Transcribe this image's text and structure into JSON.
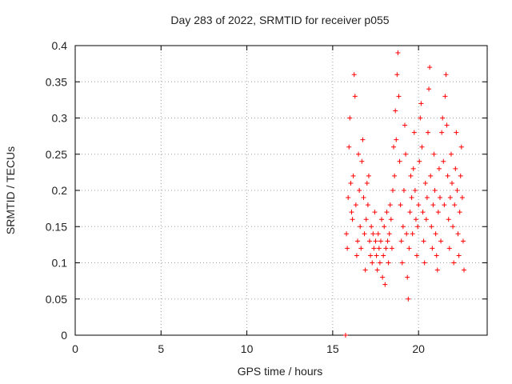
{
  "chart_data": {
    "type": "scatter",
    "title": "Day 283 of 2022, SRMTID for receiver p055",
    "xlabel": "GPS time / hours",
    "ylabel": "SRMTID / TECUs",
    "xlim": [
      0,
      24
    ],
    "ylim": [
      0,
      0.4
    ],
    "xticks": [
      0,
      5,
      10,
      15,
      20
    ],
    "xtick_labels": [
      "0",
      "5",
      "10",
      "15",
      "20"
    ],
    "yticks": [
      0,
      0.05,
      0.1,
      0.15,
      0.2,
      0.25,
      0.3,
      0.35,
      0.4
    ],
    "ytick_labels": [
      "0",
      "0.05",
      "0.1",
      "0.15",
      "0.2",
      "0.25",
      "0.3",
      "0.35",
      "0.4"
    ],
    "grid": true,
    "marker": "+",
    "color": "#ff0000",
    "series": [
      {
        "name": "SRMTID",
        "points": [
          [
            15.75,
            0.0
          ],
          [
            15.8,
            0.14
          ],
          [
            15.85,
            0.12
          ],
          [
            15.9,
            0.19
          ],
          [
            15.95,
            0.26
          ],
          [
            16.0,
            0.3
          ],
          [
            16.05,
            0.21
          ],
          [
            16.1,
            0.17
          ],
          [
            16.15,
            0.16
          ],
          [
            16.2,
            0.22
          ],
          [
            16.25,
            0.36
          ],
          [
            16.3,
            0.33
          ],
          [
            16.35,
            0.18
          ],
          [
            16.4,
            0.11
          ],
          [
            16.45,
            0.13
          ],
          [
            16.5,
            0.25
          ],
          [
            16.55,
            0.2
          ],
          [
            16.6,
            0.15
          ],
          [
            16.65,
            0.12
          ],
          [
            16.7,
            0.24
          ],
          [
            16.75,
            0.27
          ],
          [
            16.8,
            0.19
          ],
          [
            16.85,
            0.14
          ],
          [
            16.9,
            0.09
          ],
          [
            16.95,
            0.16
          ],
          [
            17.0,
            0.21
          ],
          [
            17.05,
            0.18
          ],
          [
            17.1,
            0.22
          ],
          [
            17.15,
            0.13
          ],
          [
            17.2,
            0.11
          ],
          [
            17.25,
            0.15
          ],
          [
            17.3,
            0.1
          ],
          [
            17.35,
            0.14
          ],
          [
            17.4,
            0.12
          ],
          [
            17.45,
            0.17
          ],
          [
            17.5,
            0.13
          ],
          [
            17.55,
            0.11
          ],
          [
            17.6,
            0.09
          ],
          [
            17.65,
            0.14
          ],
          [
            17.7,
            0.12
          ],
          [
            17.75,
            0.1
          ],
          [
            17.8,
            0.13
          ],
          [
            17.85,
            0.16
          ],
          [
            17.9,
            0.08
          ],
          [
            17.95,
            0.11
          ],
          [
            18.0,
            0.15
          ],
          [
            18.05,
            0.07
          ],
          [
            18.1,
            0.12
          ],
          [
            18.15,
            0.17
          ],
          [
            18.2,
            0.13
          ],
          [
            18.25,
            0.1
          ],
          [
            18.3,
            0.14
          ],
          [
            18.35,
            0.18
          ],
          [
            18.4,
            0.16
          ],
          [
            18.45,
            0.12
          ],
          [
            18.5,
            0.2
          ],
          [
            18.55,
            0.26
          ],
          [
            18.6,
            0.22
          ],
          [
            18.65,
            0.31
          ],
          [
            18.7,
            0.27
          ],
          [
            18.75,
            0.36
          ],
          [
            18.8,
            0.39
          ],
          [
            18.85,
            0.33
          ],
          [
            18.9,
            0.24
          ],
          [
            18.95,
            0.18
          ],
          [
            19.0,
            0.13
          ],
          [
            19.05,
            0.1
          ],
          [
            19.1,
            0.15
          ],
          [
            19.15,
            0.2
          ],
          [
            19.2,
            0.29
          ],
          [
            19.25,
            0.25
          ],
          [
            19.3,
            0.14
          ],
          [
            19.35,
            0.08
          ],
          [
            19.4,
            0.05
          ],
          [
            19.45,
            0.12
          ],
          [
            19.5,
            0.17
          ],
          [
            19.55,
            0.22
          ],
          [
            19.6,
            0.19
          ],
          [
            19.65,
            0.14
          ],
          [
            19.7,
            0.23
          ],
          [
            19.75,
            0.28
          ],
          [
            19.8,
            0.2
          ],
          [
            19.85,
            0.16
          ],
          [
            19.9,
            0.11
          ],
          [
            19.95,
            0.15
          ],
          [
            20.0,
            0.18
          ],
          [
            20.05,
            0.24
          ],
          [
            20.1,
            0.3
          ],
          [
            20.15,
            0.32
          ],
          [
            20.2,
            0.26
          ],
          [
            20.25,
            0.17
          ],
          [
            20.3,
            0.13
          ],
          [
            20.35,
            0.1
          ],
          [
            20.4,
            0.21
          ],
          [
            20.45,
            0.16
          ],
          [
            20.5,
            0.19
          ],
          [
            20.55,
            0.28
          ],
          [
            20.6,
            0.34
          ],
          [
            20.65,
            0.37
          ],
          [
            20.7,
            0.22
          ],
          [
            20.75,
            0.15
          ],
          [
            20.8,
            0.12
          ],
          [
            20.85,
            0.18
          ],
          [
            20.9,
            0.25
          ],
          [
            20.95,
            0.2
          ],
          [
            21.0,
            0.14
          ],
          [
            21.05,
            0.11
          ],
          [
            21.1,
            0.09
          ],
          [
            21.15,
            0.17
          ],
          [
            21.2,
            0.23
          ],
          [
            21.25,
            0.19
          ],
          [
            21.3,
            0.13
          ],
          [
            21.35,
            0.28
          ],
          [
            21.4,
            0.3
          ],
          [
            21.45,
            0.24
          ],
          [
            21.5,
            0.18
          ],
          [
            21.55,
            0.33
          ],
          [
            21.6,
            0.36
          ],
          [
            21.65,
            0.29
          ],
          [
            21.7,
            0.22
          ],
          [
            21.75,
            0.16
          ],
          [
            21.8,
            0.12
          ],
          [
            21.85,
            0.19
          ],
          [
            21.9,
            0.25
          ],
          [
            21.95,
            0.21
          ],
          [
            22.0,
            0.15
          ],
          [
            22.05,
            0.1
          ],
          [
            22.1,
            0.18
          ],
          [
            22.15,
            0.23
          ],
          [
            22.2,
            0.28
          ],
          [
            22.25,
            0.2
          ],
          [
            22.3,
            0.14
          ],
          [
            22.35,
            0.11
          ],
          [
            22.4,
            0.17
          ],
          [
            22.45,
            0.22
          ],
          [
            22.5,
            0.26
          ],
          [
            22.55,
            0.19
          ],
          [
            22.6,
            0.13
          ],
          [
            22.65,
            0.09
          ]
        ]
      }
    ]
  }
}
